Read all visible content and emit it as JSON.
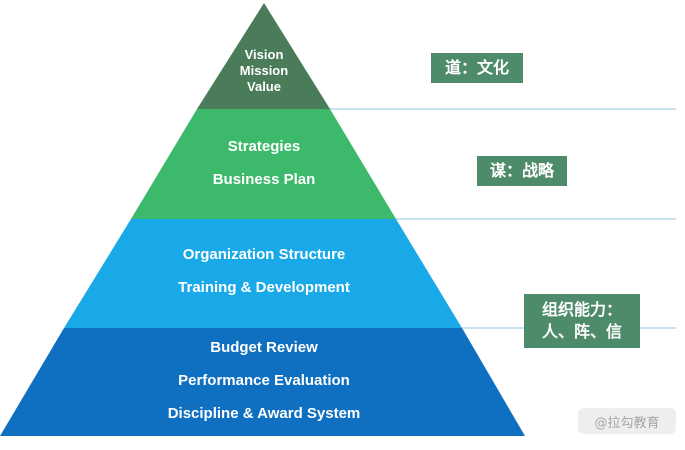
{
  "pyramid": {
    "tiers": [
      {
        "lines": [
          "Vision",
          "Mission",
          "Value"
        ],
        "color": "#4a7c59"
      },
      {
        "lines": [
          "Strategies",
          "Business Plan"
        ],
        "color": "#3db96b"
      },
      {
        "lines": [
          "Organization Structure",
          "Training & Development"
        ],
        "color": "#1aa9e8"
      },
      {
        "lines": [
          "Budget Review",
          "Performance Evaluation",
          "Discipline & Award System"
        ],
        "color": "#0f6fc0"
      }
    ]
  },
  "side_labels": [
    {
      "text": "道：文化"
    },
    {
      "text": "谋：战略"
    },
    {
      "line1": "组织能力：",
      "line2": "人、阵、信"
    }
  ],
  "divider_color": "#b9d8e8",
  "watermark": "@拉勾教育"
}
